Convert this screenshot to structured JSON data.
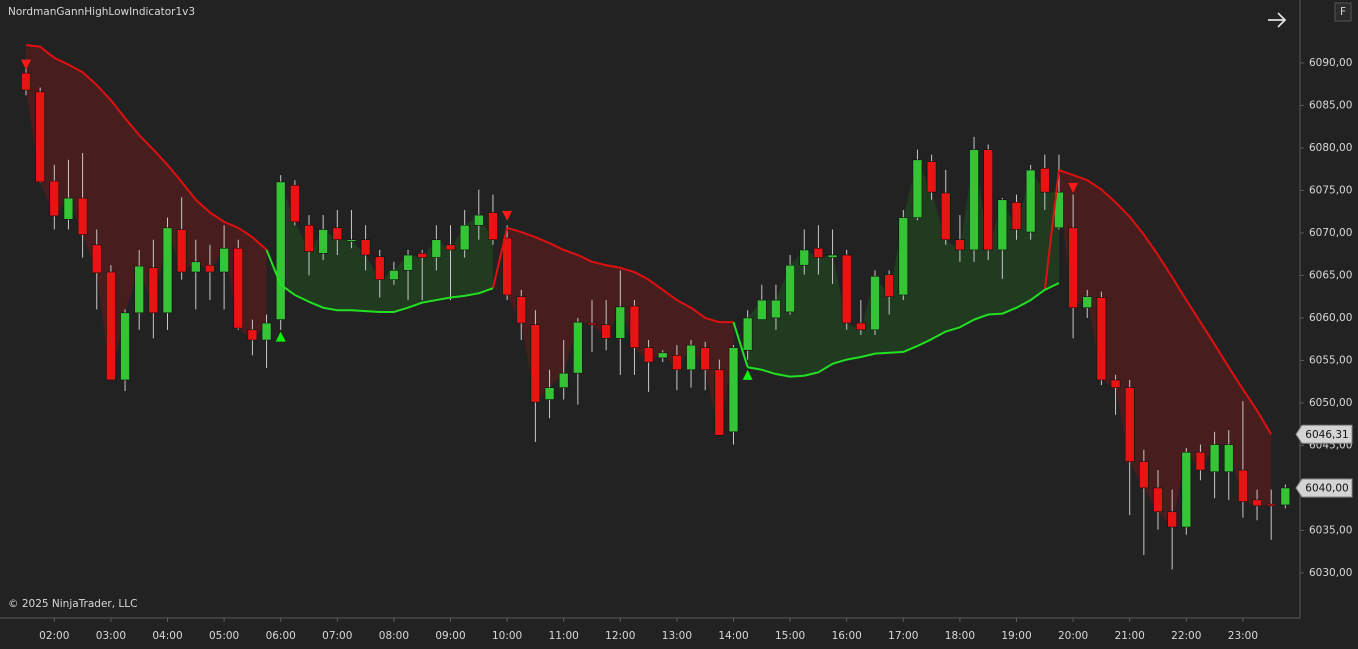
{
  "chart_data": {
    "type": "candlestick",
    "title": "NordmanGannHighLowIndicator1v3",
    "copyright": "© 2025 NinjaTrader, LLC",
    "button": "F",
    "categories": [
      null,
      null,
      "02:00",
      null,
      null,
      null,
      "03:00",
      null,
      null,
      null,
      "04:00",
      null,
      null,
      null,
      "05:00",
      null,
      null,
      null,
      "06:00",
      null,
      null,
      null,
      "07:00",
      null,
      null,
      null,
      "08:00",
      null,
      null,
      null,
      "09:00",
      null,
      null,
      null,
      "10:00",
      null,
      null,
      null,
      "11:00",
      null,
      null,
      null,
      "12:00",
      null,
      null,
      null,
      "13:00",
      null,
      null,
      null,
      "14:00",
      null,
      null,
      null,
      "15:00",
      null,
      null,
      null,
      "16:00",
      null,
      null,
      null,
      "17:00",
      null,
      null,
      null,
      "18:00",
      null,
      null,
      null,
      "19:00",
      null,
      null,
      null,
      "20:00",
      null,
      null,
      null,
      "21:00",
      null,
      null,
      null,
      "22:00",
      null,
      null,
      null,
      "23:00",
      null,
      null,
      null
    ],
    "open": [
      6088.8,
      6086.6,
      6076.1,
      6071.6,
      6074.1,
      6068.6,
      6065.4,
      6052.7,
      6060.6,
      6065.9,
      6060.6,
      6070.4,
      6065.4,
      6066.2,
      6065.4,
      6068.2,
      6058.6,
      6057.4,
      6059.8,
      6075.6,
      6070.9,
      6067.6,
      6070.6,
      6069.0,
      6069.2,
      6067.2,
      6064.5,
      6065.6,
      6067.6,
      6067.1,
      6068.6,
      6068.0,
      6070.9,
      6072.4,
      6069.4,
      6062.5,
      6059.2,
      6050.4,
      6051.8,
      6053.5,
      6059.4,
      6059.2,
      6057.6,
      6061.4,
      6056.5,
      6055.3,
      6055.6,
      6053.9,
      6056.5,
      6053.9,
      6046.6,
      6056.2,
      6059.8,
      6060.0,
      6060.7,
      6066.2,
      6068.2,
      6067.1,
      6067.4,
      6059.4,
      6058.6,
      6065.1,
      6062.7,
      6071.8,
      6078.4,
      6074.7,
      6069.2,
      6068.0,
      6079.8,
      6068.0,
      6073.6,
      6070.1,
      6077.6,
      6070.6,
      6070.6,
      6061.2,
      6062.4,
      6052.7,
      6051.8,
      6043.1,
      6040.0,
      6037.2,
      6035.4,
      6044.2,
      6041.9,
      6041.9,
      6042.1,
      6038.6,
      6038.1,
      6038.0
    ],
    "high": [
      6090.1,
      6087.1,
      6078.0,
      6078.6,
      6079.4,
      6070.4,
      6066.2,
      6061.0,
      6068.0,
      6069.2,
      6071.8,
      6074.2,
      6069.2,
      6068.6,
      6070.9,
      6069.2,
      6059.8,
      6060.4,
      6076.8,
      6076.2,
      6072.1,
      6072.1,
      6072.7,
      6072.7,
      6070.9,
      6068.0,
      6066.6,
      6068.0,
      6068.0,
      6070.9,
      6070.9,
      6072.7,
      6075.1,
      6074.5,
      6070.9,
      6063.3,
      6060.9,
      6053.9,
      6057.4,
      6060.0,
      6062.1,
      6062.1,
      6065.6,
      6062.1,
      6057.4,
      6056.2,
      6056.8,
      6057.4,
      6057.2,
      6055.1,
      6056.8,
      6060.9,
      6063.9,
      6063.9,
      6067.4,
      6070.4,
      6070.9,
      6070.4,
      6068.0,
      6062.1,
      6065.6,
      6065.6,
      6072.7,
      6079.8,
      6079.2,
      6077.4,
      6072.1,
      6081.3,
      6080.4,
      6074.1,
      6074.5,
      6078.0,
      6079.2,
      6079.2,
      6074.5,
      6063.3,
      6063.1,
      6053.3,
      6052.7,
      6044.5,
      6042.1,
      6039.8,
      6044.7,
      6045.1,
      6046.6,
      6046.8,
      6050.2,
      6039.8,
      6039.8,
      6040.4
    ],
    "low": [
      6086.2,
      6075.9,
      6070.4,
      6070.4,
      6067.1,
      6061.0,
      6052.7,
      6051.4,
      6058.6,
      6057.6,
      6058.6,
      6064.5,
      6061.0,
      6062.1,
      6061.0,
      6058.6,
      6055.6,
      6054.1,
      6058.6,
      6070.9,
      6065.0,
      6066.8,
      6067.4,
      6068.2,
      6065.6,
      6062.4,
      6063.9,
      6062.1,
      6062.1,
      6065.6,
      6062.1,
      6067.1,
      6069.2,
      6068.6,
      6062.1,
      6057.4,
      6045.4,
      6048.2,
      6050.4,
      6049.8,
      6056.0,
      6056.2,
      6053.3,
      6053.3,
      6051.3,
      6054.8,
      6051.5,
      6051.8,
      6051.5,
      6046.2,
      6045.1,
      6055.1,
      6059.8,
      6058.6,
      6060.4,
      6065.1,
      6065.1,
      6064.0,
      6058.6,
      6058.0,
      6058.0,
      6060.4,
      6062.1,
      6071.5,
      6073.9,
      6068.6,
      6066.6,
      6066.6,
      6066.8,
      6064.6,
      6069.2,
      6069.2,
      6072.7,
      6070.4,
      6057.6,
      6060.0,
      6052.1,
      6048.6,
      6036.8,
      6032.1,
      6035.1,
      6030.4,
      6034.5,
      6040.9,
      6038.8,
      6038.6,
      6036.5,
      6036.2,
      6033.9,
      6037.6
    ],
    "close": [
      6086.8,
      6076.0,
      6072.0,
      6074.1,
      6069.8,
      6065.3,
      6052.7,
      6060.6,
      6066.1,
      6060.6,
      6070.6,
      6065.4,
      6066.6,
      6065.4,
      6068.2,
      6058.8,
      6057.4,
      6059.4,
      6076.0,
      6071.3,
      6067.8,
      6070.4,
      6069.2,
      6069.2,
      6067.4,
      6064.5,
      6065.6,
      6067.4,
      6067.1,
      6069.2,
      6068.0,
      6070.9,
      6072.1,
      6069.2,
      6062.7,
      6059.4,
      6050.1,
      6051.8,
      6053.5,
      6059.5,
      6059.2,
      6057.6,
      6061.3,
      6056.5,
      6054.8,
      6055.9,
      6053.9,
      6056.8,
      6053.9,
      6046.2,
      6056.5,
      6060.0,
      6062.1,
      6062.1,
      6066.2,
      6068.0,
      6067.1,
      6067.4,
      6059.4,
      6058.6,
      6064.9,
      6062.5,
      6071.8,
      6078.6,
      6074.8,
      6069.2,
      6068.0,
      6079.8,
      6068.0,
      6073.9,
      6070.4,
      6077.4,
      6074.8,
      6074.8,
      6061.2,
      6062.5,
      6052.7,
      6051.8,
      6043.1,
      6040.0,
      6037.2,
      6035.4,
      6044.2,
      6042.1,
      6045.1,
      6045.1,
      6038.4,
      6037.9,
      6037.9,
      6040.0
    ],
    "up_color": "#35c435",
    "down_color": "#e81414",
    "wick_color": "#c8c8c8",
    "indicator_down": {
      "color": "#e01010",
      "fill": "rgba(120,25,25,0.45)",
      "values": [
        6092.1,
        6091.9,
        6090.6,
        6089.8,
        6088.9,
        6087.4,
        6085.6,
        6083.5,
        6081.5,
        6079.8,
        6078.0,
        6076.0,
        6073.9,
        6072.4,
        6071.3,
        6070.6,
        6069.5,
        6068.0,
        null,
        null,
        null,
        null,
        null,
        null,
        null,
        null,
        null,
        null,
        null,
        null,
        null,
        null,
        null,
        null,
        6070.6,
        6070.1,
        6069.5,
        6068.8,
        6068.0,
        6067.4,
        6066.6,
        6066.2,
        6065.9,
        6065.4,
        6064.5,
        6063.3,
        6062.1,
        6061.2,
        6060.0,
        6059.5,
        6059.5,
        null,
        null,
        null,
        null,
        null,
        null,
        null,
        null,
        null,
        null,
        null,
        null,
        null,
        null,
        null,
        null,
        null,
        null,
        null,
        null,
        null,
        null,
        6077.4,
        6076.8,
        6076.2,
        6075.1,
        6073.6,
        6071.9,
        6069.8,
        6067.4,
        6064.8,
        6062.1,
        6059.5,
        6056.9,
        6054.2,
        6051.6,
        6049.1,
        6046.31
      ]
    },
    "indicator_up": {
      "color": "#22e022",
      "fill": "rgba(30,90,30,0.45)",
      "values": [
        null,
        null,
        null,
        null,
        null,
        null,
        null,
        null,
        null,
        null,
        null,
        null,
        null,
        null,
        null,
        null,
        null,
        null,
        6063.9,
        6062.7,
        6061.9,
        6061.2,
        6060.9,
        6060.9,
        6060.8,
        6060.7,
        6060.7,
        6061.2,
        6061.8,
        6062.1,
        6062.4,
        6062.6,
        6062.9,
        6063.5,
        null,
        null,
        null,
        null,
        null,
        null,
        null,
        null,
        null,
        null,
        null,
        null,
        null,
        null,
        null,
        null,
        null,
        6054.2,
        6053.9,
        6053.4,
        6053.1,
        6053.2,
        6053.6,
        6054.6,
        6055.1,
        6055.4,
        6055.8,
        6055.9,
        6056.0,
        6056.7,
        6057.5,
        6058.4,
        6058.9,
        6059.8,
        6060.4,
        6060.5,
        6061.2,
        6062.1,
        6063.3,
        6064.1,
        null,
        null,
        null,
        null,
        null,
        null,
        null,
        null,
        null,
        null,
        null,
        null,
        null,
        null,
        null,
        null
      ]
    },
    "sell_signals": {
      "color": "#ff1a1a",
      "values": [
        6089.8,
        null,
        null,
        null,
        null,
        null,
        null,
        null,
        null,
        null,
        null,
        null,
        null,
        null,
        null,
        null,
        null,
        null,
        null,
        null,
        null,
        null,
        null,
        null,
        null,
        null,
        null,
        null,
        null,
        null,
        null,
        null,
        null,
        null,
        6072.0,
        null,
        null,
        null,
        null,
        null,
        null,
        null,
        null,
        null,
        null,
        null,
        null,
        null,
        null,
        null,
        null,
        null,
        null,
        null,
        null,
        null,
        null,
        null,
        null,
        null,
        null,
        null,
        null,
        null,
        null,
        null,
        null,
        null,
        null,
        null,
        null,
        null,
        null,
        null,
        6075.3,
        null,
        null,
        null,
        null,
        null,
        null,
        null,
        null,
        null,
        null,
        null,
        null,
        null,
        null,
        null
      ]
    },
    "buy_signals": {
      "color": "#10f010",
      "values": [
        null,
        null,
        null,
        null,
        null,
        null,
        null,
        null,
        null,
        null,
        null,
        null,
        null,
        null,
        null,
        null,
        null,
        null,
        6057.8,
        null,
        null,
        null,
        null,
        null,
        null,
        null,
        null,
        null,
        null,
        null,
        null,
        null,
        null,
        null,
        null,
        null,
        null,
        null,
        null,
        null,
        null,
        null,
        null,
        null,
        null,
        null,
        null,
        null,
        null,
        null,
        null,
        6053.3,
        null,
        null,
        null,
        null,
        null,
        null,
        null,
        null,
        null,
        null,
        null,
        null,
        null,
        null,
        null,
        null,
        null,
        null,
        null,
        null,
        null,
        null,
        null,
        null,
        null,
        null,
        null,
        null,
        null,
        null,
        null,
        null,
        null,
        null,
        null,
        null,
        null,
        null
      ]
    },
    "price_markers": [
      {
        "value": 6046.31,
        "label": "6046,31"
      },
      {
        "value": 6040,
        "label": "6040,00"
      }
    ],
    "ylim": [
      6024.7,
      6097.4
    ],
    "yticks": [
      {
        "value": 6030,
        "label": "6030,00"
      },
      {
        "value": 6035,
        "label": "6035,00"
      },
      {
        "value": 6040,
        "label": "6040,00"
      },
      {
        "value": 6045,
        "label": "6045,00"
      },
      {
        "value": 6050,
        "label": "6050,00"
      },
      {
        "value": 6055,
        "label": "6055,00"
      },
      {
        "value": 6060,
        "label": "6060,00"
      },
      {
        "value": 6065,
        "label": "6065,00"
      },
      {
        "value": 6070,
        "label": "6070,00"
      },
      {
        "value": 6075,
        "label": "6075,00"
      },
      {
        "value": 6080,
        "label": "6080,00"
      },
      {
        "value": 6085,
        "label": "6085,00"
      },
      {
        "value": 6090,
        "label": "6090,00"
      }
    ],
    "grid": false
  }
}
